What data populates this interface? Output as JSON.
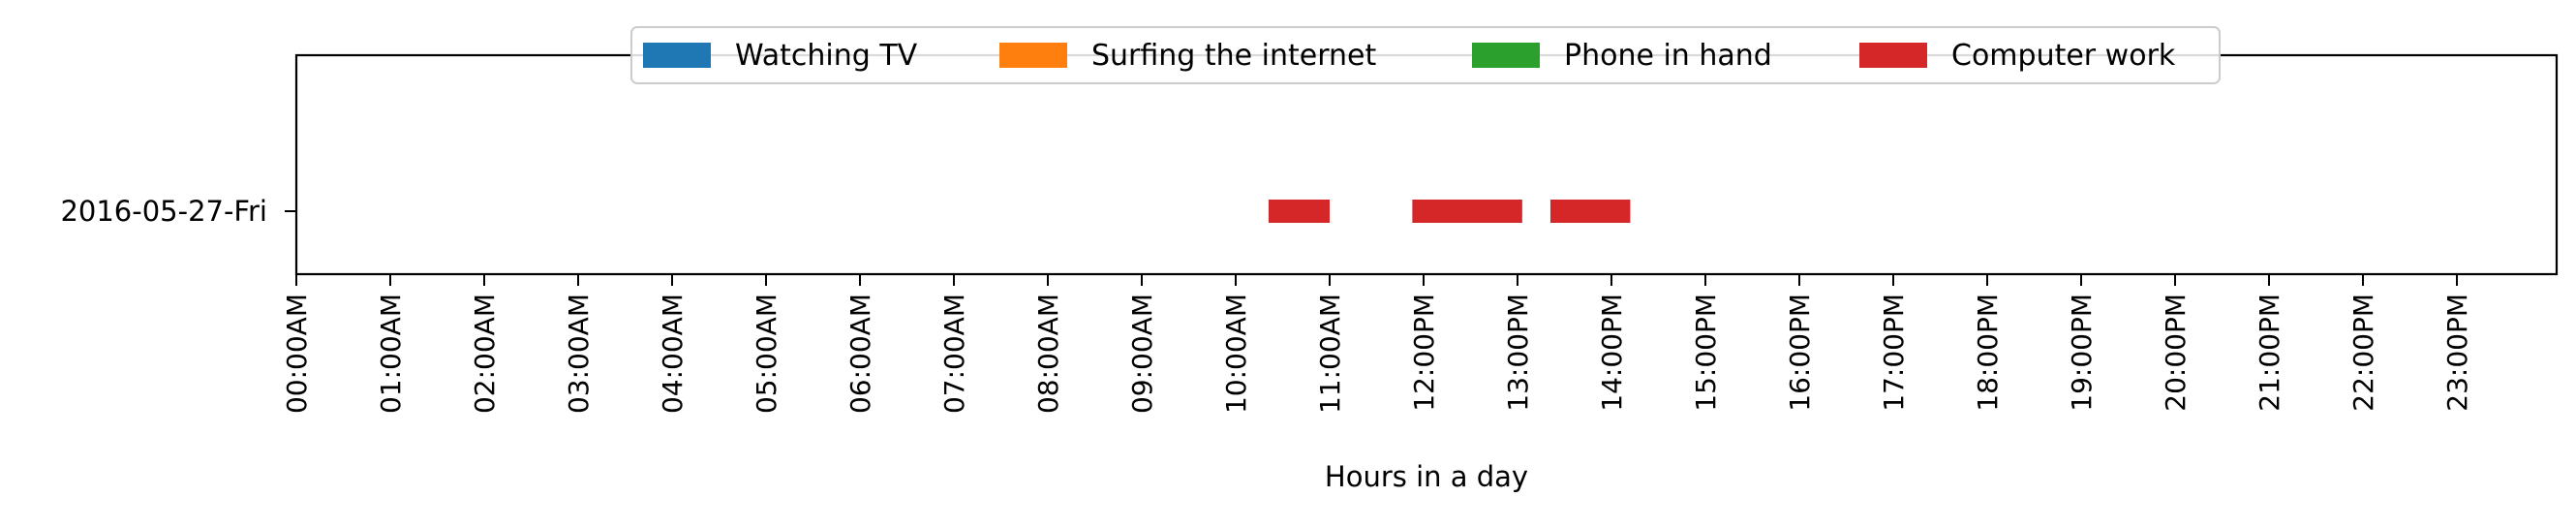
{
  "chart_data": {
    "type": "bar",
    "orientation": "horizontal",
    "title": "",
    "xlabel": "Hours in a day",
    "ylabel": "",
    "xlim": [
      0,
      24
    ],
    "categories": [
      "2016-05-27-Fri"
    ],
    "x_tick_labels": [
      "00:00AM",
      "01:00AM",
      "02:00AM",
      "03:00AM",
      "04:00AM",
      "05:00AM",
      "06:00AM",
      "07:00AM",
      "08:00AM",
      "09:00AM",
      "10:00AM",
      "11:00AM",
      "12:00PM",
      "13:00PM",
      "14:00PM",
      "15:00PM",
      "16:00PM",
      "17:00PM",
      "18:00PM",
      "19:00PM",
      "20:00PM",
      "21:00PM",
      "22:00PM",
      "23:00PM"
    ],
    "legend_position": "top-center",
    "grid": false,
    "series": [
      {
        "name": "Watching TV",
        "color": "#1f77b4",
        "intervals": []
      },
      {
        "name": "Surfing the internet",
        "color": "#ff7f0e",
        "intervals": []
      },
      {
        "name": "Phone in hand",
        "color": "#2ca02c",
        "intervals": []
      },
      {
        "name": "Computer work",
        "color": "#d62728",
        "intervals": [
          {
            "category": "2016-05-27-Fri",
            "start": 10.35,
            "end": 11.0
          },
          {
            "category": "2016-05-27-Fri",
            "start": 11.88,
            "end": 13.05
          },
          {
            "category": "2016-05-27-Fri",
            "start": 13.35,
            "end": 14.2
          }
        ]
      }
    ]
  }
}
